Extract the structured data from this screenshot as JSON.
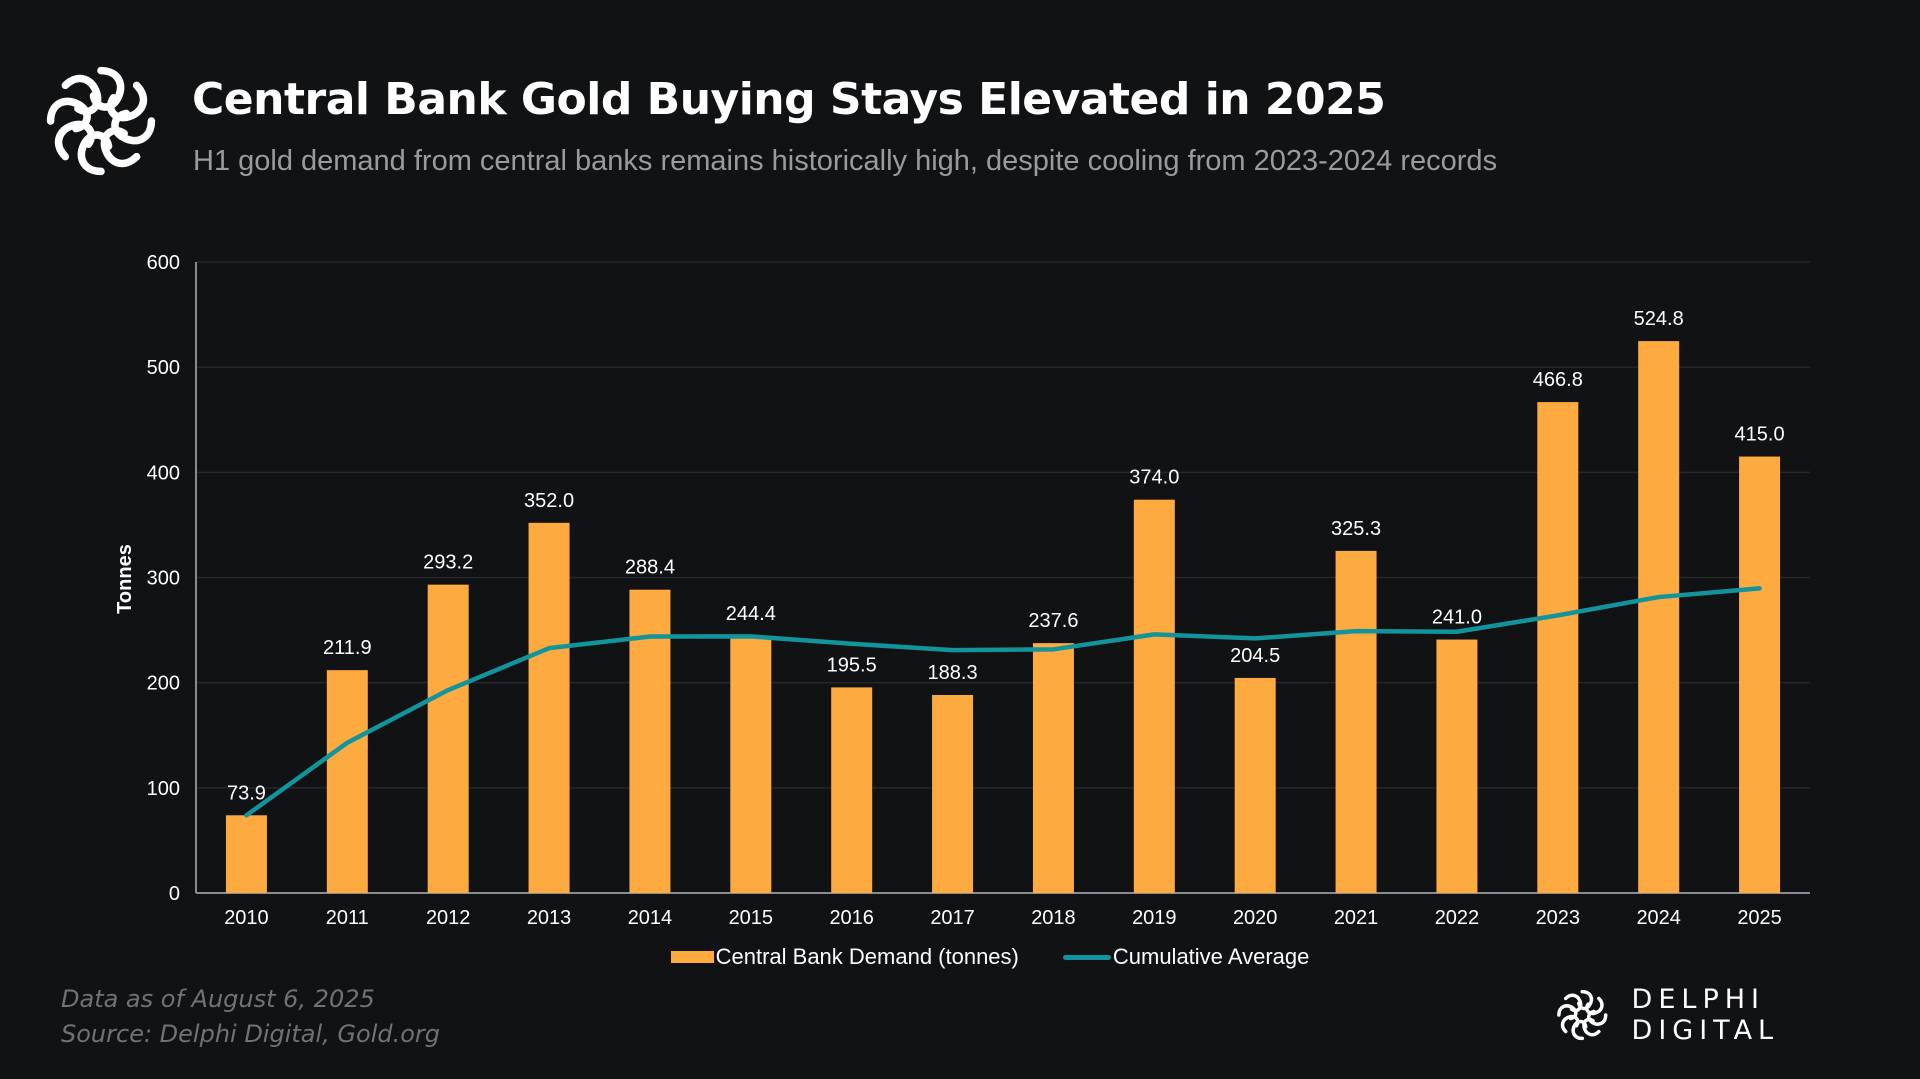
{
  "header": {
    "title": "Central Bank Gold Buying Stays Elevated in 2025",
    "subtitle": "H1 gold demand from central banks remains historically high, despite cooling from 2023-2024 records",
    "logo_icon": "delphi-knot-icon"
  },
  "footer": {
    "date_note": "Data as of August 6, 2025",
    "source": "Source: Delphi Digital, Gold.org",
    "brand_name": "DELPHI DIGITAL",
    "brand_icon": "delphi-knot-icon"
  },
  "colors": {
    "background": "#111214",
    "bar": "#fdaa41",
    "line": "#12949c",
    "grid": "#26272a",
    "text": "#ffffff",
    "subtitle": "#9a9b9e"
  },
  "chart_data": {
    "type": "bar",
    "title": "Central Bank Gold Buying Stays Elevated in 2025",
    "xlabel": "",
    "ylabel": "Tonnes",
    "ylim": [
      0,
      600
    ],
    "yticks": [
      0,
      100,
      200,
      300,
      400,
      500,
      600
    ],
    "grid": true,
    "legend_position": "bottom-center",
    "categories": [
      "2010",
      "2011",
      "2012",
      "2013",
      "2014",
      "2015",
      "2016",
      "2017",
      "2018",
      "2019",
      "2020",
      "2021",
      "2022",
      "2023",
      "2024",
      "2025"
    ],
    "series": [
      {
        "name": "Central Bank Demand (tonnes)",
        "type": "bar",
        "values": [
          73.9,
          211.9,
          293.2,
          352.0,
          288.4,
          244.4,
          195.5,
          188.3,
          237.6,
          374.0,
          204.5,
          325.3,
          241.0,
          466.8,
          524.8,
          415.0
        ],
        "labels": [
          "73.9",
          "211.9",
          "293.2",
          "352.0",
          "288.4",
          "244.4",
          "195.5",
          "188.3",
          "237.6",
          "374.0",
          "204.5",
          "325.3",
          "241.0",
          "466.8",
          "524.8",
          "415.0"
        ]
      },
      {
        "name": "Cumulative Average",
        "type": "line",
        "values": [
          73.9,
          142.9,
          193.0,
          232.8,
          243.9,
          244.0,
          237.0,
          230.9,
          231.7,
          245.9,
          242.1,
          249.0,
          248.4,
          264.0,
          281.4,
          289.7
        ]
      }
    ]
  }
}
